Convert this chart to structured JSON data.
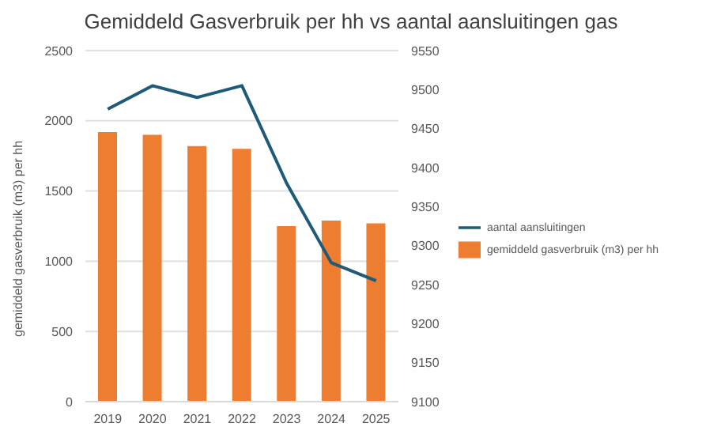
{
  "chart_data": {
    "type": "bar",
    "title": "Gemiddeld Gasverbruik per hh vs aantal aansluitingen gas",
    "ylabel": "gemiddeld gasverbruik (m3) per hh",
    "categories": [
      "2019",
      "2020",
      "2021",
      "2022",
      "2023",
      "2024",
      "2025"
    ],
    "series": [
      {
        "name": "gemiddeld gasverbruik (m3) per hh",
        "color": "#ed7d31",
        "values": [
          1920,
          1900,
          1820,
          1800,
          1250,
          1290,
          1270
        ]
      },
      {
        "name": "aantal aansluitingen",
        "type": "line",
        "axis": "y2",
        "color": "#1f5b79",
        "values": [
          9475,
          9505,
          9490,
          9505,
          9380,
          9278,
          9255
        ]
      }
    ],
    "ylim": [
      0,
      2500
    ],
    "yticks": [
      0,
      500,
      1000,
      1500,
      2000,
      2500
    ],
    "y2lim": [
      9100,
      9550
    ],
    "y2ticks": [
      9100,
      9150,
      9200,
      9250,
      9300,
      9350,
      9400,
      9450,
      9500,
      9550
    ],
    "grid": "y",
    "legend": "right",
    "marker": "none"
  }
}
